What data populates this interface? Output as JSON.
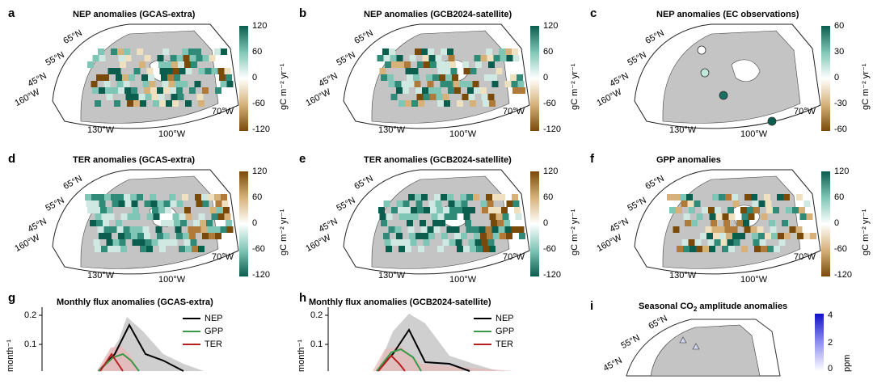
{
  "panels": [
    {
      "label": "a",
      "title": "NEP anomalies (GCAS-extra)",
      "ticks": [
        "120",
        "60",
        "0",
        "-60",
        "-120"
      ],
      "unit": "gC m⁻² yr⁻¹",
      "scale": "teal-brown"
    },
    {
      "label": "b",
      "title": "NEP anomalies (GCB2024-satellite)",
      "ticks": [
        "120",
        "60",
        "0",
        "-60",
        "-120"
      ],
      "unit": "gC m⁻² yr⁻¹",
      "scale": "teal-brown"
    },
    {
      "label": "c",
      "title": "NEP anomalies (EC observations)",
      "ticks": [
        "60",
        "30",
        "0",
        "-30",
        "-60"
      ],
      "unit": "gC m⁻² yr⁻¹",
      "scale": "teal-brown"
    },
    {
      "label": "d",
      "title": "TER anomalies (GCAS-extra)",
      "ticks": [
        "120",
        "60",
        "0",
        "-60",
        "-120"
      ],
      "unit": "gC m⁻² yr⁻¹",
      "scale": "brown-teal"
    },
    {
      "label": "e",
      "title": "TER anomalies (GCB2024-satellite)",
      "ticks": [
        "120",
        "60",
        "0",
        "-60",
        "-120"
      ],
      "unit": "gC m⁻² yr⁻¹",
      "scale": "brown-teal"
    },
    {
      "label": "f",
      "title": "GPP anomalies",
      "ticks": [
        "120",
        "60",
        "0",
        "-60",
        "-120"
      ],
      "unit": "gC m⁻² yr⁻¹",
      "scale": "teal-brown"
    }
  ],
  "map_labels": {
    "lat": [
      "65°N",
      "55°N",
      "45°N",
      "160°W"
    ],
    "lon": [
      "130°W",
      "100°W",
      "70°W"
    ]
  },
  "bottom": {
    "g": {
      "label": "g",
      "title": "Monthly flux anomalies (GCAS-extra)",
      "yticks": [
        "0.2",
        "0.1"
      ],
      "ylabel": "month⁻¹"
    },
    "h": {
      "label": "h",
      "title": "Monthly flux anomalies (GCB2024-satellite)",
      "yticks": [
        "0.2",
        "0.1"
      ],
      "ylabel": "month⁻¹"
    },
    "i": {
      "label": "i",
      "title_main": "Seasonal CO",
      "title_sub": "2",
      "title_tail": " amplitude anomalies",
      "ticks": [
        "4",
        "2",
        "0"
      ],
      "unit": "ppm"
    }
  },
  "legend": [
    "NEP",
    "GPP",
    "TER"
  ],
  "colors": {
    "nep": "#000000",
    "gpp": "#3a9a4a",
    "ter": "#b82020",
    "teal": "#0b5d4e",
    "brown": "#7a4a0a",
    "land": "#c4c4c4"
  }
}
